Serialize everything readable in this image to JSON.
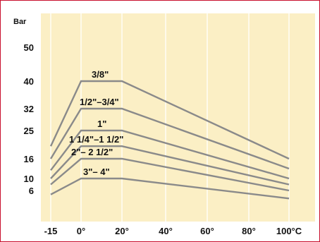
{
  "chart_data": {
    "type": "line",
    "title": "",
    "xlabel": "",
    "ylabel": "",
    "y_unit_label": "Bar",
    "x_ticks": [
      {
        "value": -15,
        "label": "-15"
      },
      {
        "value": 0,
        "label": "0°"
      },
      {
        "value": 20,
        "label": "20°"
      },
      {
        "value": 40,
        "label": "40°"
      },
      {
        "value": 60,
        "label": "60°"
      },
      {
        "value": 80,
        "label": "80°"
      },
      {
        "value": 100,
        "label": "100°C"
      }
    ],
    "y_ticks": [
      {
        "value": 6,
        "label": "6"
      },
      {
        "value": 10,
        "label": "10"
      },
      {
        "value": 16,
        "label": "16"
      },
      {
        "value": 25,
        "label": "25"
      },
      {
        "value": 32,
        "label": "32"
      },
      {
        "value": 40,
        "label": "40"
      },
      {
        "value": 50,
        "label": "50"
      }
    ],
    "xlim": [
      -20,
      105
    ],
    "ylim": [
      0,
      56
    ],
    "grid": "vertical",
    "legend": "none",
    "colors": {
      "plot_background": "#fbefc5",
      "grid": "#ffffff",
      "line": "#8a8a8a",
      "frame": "#c8102e"
    },
    "series": [
      {
        "label": "3/8\"",
        "points": [
          [
            -15,
            20
          ],
          [
            0,
            40
          ],
          [
            20,
            40
          ],
          [
            100,
            16
          ]
        ]
      },
      {
        "label": "1/2\"–3/4\"",
        "points": [
          [
            -15,
            16
          ],
          [
            0,
            32
          ],
          [
            20,
            32
          ],
          [
            100,
            13
          ]
        ]
      },
      {
        "label": "1\"",
        "points": [
          [
            -15,
            12.5
          ],
          [
            0,
            25
          ],
          [
            20,
            25
          ],
          [
            100,
            10
          ]
        ]
      },
      {
        "label": "1 1/4\"–1 1/2\"",
        "points": [
          [
            -15,
            10
          ],
          [
            0,
            20
          ],
          [
            20,
            20
          ],
          [
            100,
            8
          ]
        ]
      },
      {
        "label": "2\"– 2 1/2\"",
        "points": [
          [
            -15,
            8
          ],
          [
            0,
            16
          ],
          [
            20,
            16
          ],
          [
            100,
            6
          ]
        ]
      },
      {
        "label": "3\"– 4\"",
        "points": [
          [
            -15,
            5
          ],
          [
            0,
            10
          ],
          [
            20,
            10
          ],
          [
            100,
            4
          ]
        ]
      }
    ]
  }
}
